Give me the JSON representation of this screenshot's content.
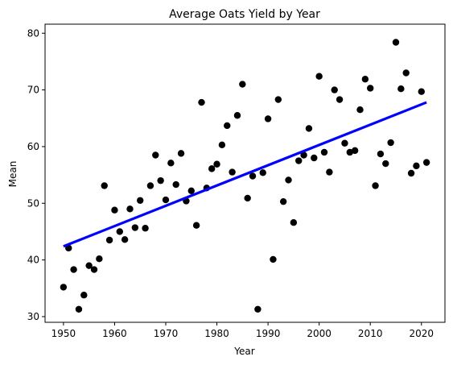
{
  "chart_data": {
    "type": "scatter",
    "title": "Average Oats Yield by Year",
    "xlabel": "Year",
    "ylabel": "Mean",
    "xlim": [
      1946.4,
      2024.6
    ],
    "ylim": [
      29.0,
      81.6
    ],
    "xticks": [
      1950,
      1960,
      1970,
      1980,
      1990,
      2000,
      2010,
      2020
    ],
    "yticks": [
      30,
      40,
      50,
      60,
      70,
      80
    ],
    "grid": false,
    "legend": null,
    "colors": {
      "points": "#000000",
      "trend": "#0000ff",
      "axes": "#000000"
    },
    "series": [
      {
        "kind": "points",
        "x": [
          1950,
          1951,
          1952,
          1953,
          1954,
          1955,
          1956,
          1957,
          1958,
          1959,
          1960,
          1961,
          1962,
          1963,
          1964,
          1965,
          1966,
          1967,
          1968,
          1969,
          1970,
          1971,
          1972,
          1973,
          1974,
          1975,
          1976,
          1977,
          1978,
          1979,
          1980,
          1981,
          1982,
          1983,
          1984,
          1985,
          1986,
          1987,
          1988,
          1989,
          1990,
          1991,
          1992,
          1993,
          1994,
          1995,
          1996,
          1997,
          1998,
          1999,
          2000,
          2001,
          2002,
          2003,
          2004,
          2005,
          2006,
          2007,
          2008,
          2009,
          2010,
          2011,
          2012,
          2013,
          2014,
          2015,
          2016,
          2017,
          2018,
          2019,
          2020,
          2021
        ],
        "y": [
          35.2,
          42.1,
          38.3,
          31.3,
          33.8,
          39.0,
          38.3,
          40.2,
          53.1,
          43.5,
          48.8,
          45.0,
          43.6,
          49.0,
          45.7,
          50.5,
          45.6,
          53.1,
          58.5,
          54.0,
          50.6,
          57.1,
          53.3,
          58.8,
          50.4,
          52.2,
          46.1,
          67.8,
          52.7,
          56.1,
          56.9,
          60.3,
          63.7,
          55.5,
          65.5,
          71.0,
          50.9,
          54.8,
          31.3,
          55.4,
          64.9,
          40.1,
          68.3,
          50.3,
          54.1,
          46.6,
          57.5,
          58.5,
          63.2,
          58.0,
          72.4,
          59.0,
          55.5,
          70.0,
          68.3,
          60.6,
          59.0,
          59.3,
          66.5,
          71.9,
          70.3,
          53.1,
          58.7,
          57.0,
          60.7,
          78.4,
          70.2,
          73.0,
          55.3,
          56.6,
          69.7,
          57.2
        ]
      },
      {
        "kind": "trend-line",
        "x": [
          1950,
          2021
        ],
        "y": [
          42.4,
          67.8
        ]
      }
    ]
  }
}
